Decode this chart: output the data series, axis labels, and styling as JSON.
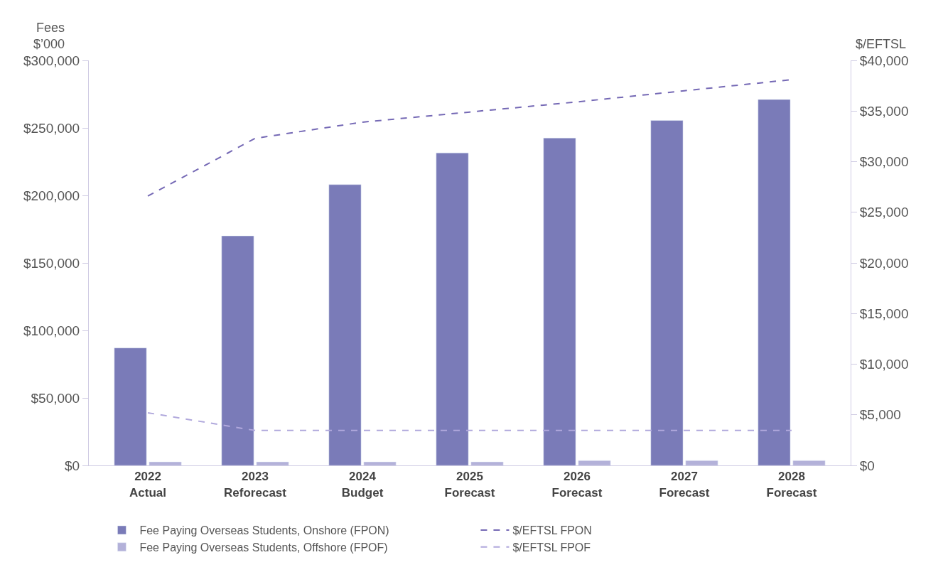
{
  "chart_data": {
    "type": "bar",
    "categories": [
      "2022\nActual",
      "2023\nReforecast",
      "2024\nBudget",
      "2025\nForecast",
      "2026\nForecast",
      "2027\nForecast",
      "2028\nForecast"
    ],
    "ylabel": "Fees\n$’000",
    "y2label": "$/EFTSL",
    "series": [
      {
        "name": "Fee Paying Overseas Students, Onshore (FPON)",
        "color": "#7a7bb8",
        "values": [
          87000,
          170000,
          208000,
          231500,
          242500,
          255500,
          271000
        ]
      },
      {
        "name": "$/EFTSL FPON",
        "type": "line",
        "axis": "y2",
        "color": "#7569b5",
        "line_style": "dashed",
        "values": [
          26600,
          32300,
          33900,
          34900,
          35900,
          37000,
          38100
        ]
      },
      {
        "name": "Fee Paying Overseas Students, Offshore (FPOF)",
        "color": "#b3b1d9",
        "values": [
          2600,
          2600,
          2600,
          2600,
          3600,
          3600,
          3600
        ]
      },
      {
        "name": "$/EFTSL FPOF",
        "type": "line",
        "axis": "y2",
        "color": "#b0a8dc",
        "line_style": "dashed",
        "values": [
          5200,
          3450,
          3450,
          3450,
          3450,
          3450,
          3450
        ]
      }
    ],
    "ylim": [
      0,
      300000
    ],
    "yticks": [
      {
        "value": 0,
        "label": "$0"
      },
      {
        "value": 50000,
        "label": "$50,000"
      },
      {
        "value": 100000,
        "label": "$100,000"
      },
      {
        "value": 150000,
        "label": "$150,000"
      },
      {
        "value": 200000,
        "label": "$200,000"
      },
      {
        "value": 250000,
        "label": "$250,000"
      },
      {
        "value": 300000,
        "label": "$300,000"
      }
    ],
    "y2lim": [
      0,
      40000
    ],
    "y2ticks": [
      {
        "value": 0,
        "label": "$0"
      },
      {
        "value": 5000,
        "label": "$5,000"
      },
      {
        "value": 10000,
        "label": "$10,000"
      },
      {
        "value": 15000,
        "label": "$15,000"
      },
      {
        "value": 20000,
        "label": "$20,000"
      },
      {
        "value": 25000,
        "label": "$25,000"
      },
      {
        "value": 30000,
        "label": "$30,000"
      },
      {
        "value": 35000,
        "label": "$35,000"
      },
      {
        "value": 40000,
        "label": "$40,000"
      }
    ],
    "legend": "bottom"
  }
}
